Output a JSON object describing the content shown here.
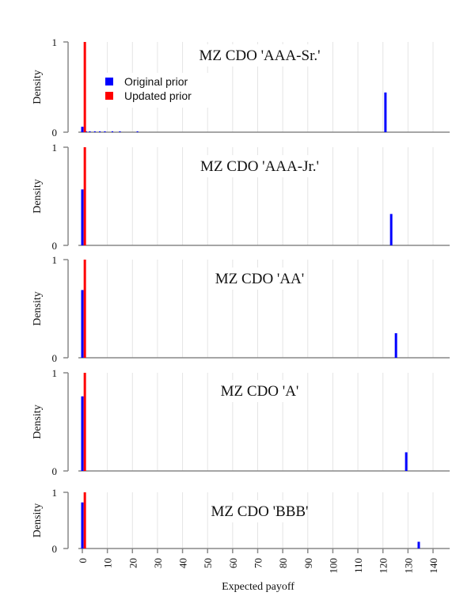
{
  "chart_data": {
    "type": "bar",
    "xlabel": "Expected payoff",
    "ylabel": "Density",
    "xlim": [
      0,
      140
    ],
    "ylim": [
      0,
      1
    ],
    "x_ticks": [
      "0",
      "10",
      "20",
      "30",
      "40",
      "50",
      "60",
      "70",
      "80",
      "90",
      "100",
      "110",
      "120",
      "130",
      "140"
    ],
    "y_ticks": [
      "0",
      "1"
    ],
    "grid": "vertical",
    "legend": {
      "placement": "top-left (first panel)",
      "entries": [
        {
          "name": "Original prior",
          "color": "#0000ff"
        },
        {
          "name": "Updated prior",
          "color": "#ff0000"
        }
      ]
    },
    "panels": [
      {
        "title": "MZ CDO 'AAA-Sr.'",
        "series": [
          {
            "name": "Original prior",
            "points": [
              {
                "x": 0,
                "y": 0.06
              },
              {
                "x": 1.5,
                "y": 0.01
              },
              {
                "x": 3,
                "y": 0.01
              },
              {
                "x": 5,
                "y": 0.01
              },
              {
                "x": 7,
                "y": 0.01
              },
              {
                "x": 9,
                "y": 0.01
              },
              {
                "x": 12,
                "y": 0.01
              },
              {
                "x": 15,
                "y": 0.01
              },
              {
                "x": 22,
                "y": 0.01
              },
              {
                "x": 121,
                "y": 0.44
              }
            ]
          },
          {
            "name": "Updated prior",
            "points": [
              {
                "x": 1,
                "y": 1.0
              }
            ]
          }
        ]
      },
      {
        "title": "MZ CDO 'AAA-Jr.'",
        "series": [
          {
            "name": "Original prior",
            "points": [
              {
                "x": 0,
                "y": 0.57
              },
              {
                "x": 123.3,
                "y": 0.32
              }
            ]
          },
          {
            "name": "Updated prior",
            "points": [
              {
                "x": 1,
                "y": 1.0
              }
            ]
          }
        ]
      },
      {
        "title": "MZ CDO 'AA'",
        "series": [
          {
            "name": "Original prior",
            "points": [
              {
                "x": 0,
                "y": 0.69
              },
              {
                "x": 125.2,
                "y": 0.25
              }
            ]
          },
          {
            "name": "Updated prior",
            "points": [
              {
                "x": 1,
                "y": 1.0
              }
            ]
          }
        ]
      },
      {
        "title": "MZ CDO 'A'",
        "series": [
          {
            "name": "Original prior",
            "points": [
              {
                "x": 0,
                "y": 0.76
              },
              {
                "x": 129.3,
                "y": 0.19
              }
            ]
          },
          {
            "name": "Updated prior",
            "points": [
              {
                "x": 1,
                "y": 1.0
              }
            ]
          }
        ]
      },
      {
        "title": "MZ CDO 'BBB'",
        "series": [
          {
            "name": "Original prior",
            "points": [
              {
                "x": 0,
                "y": 0.82
              },
              {
                "x": 134.3,
                "y": 0.12
              }
            ]
          },
          {
            "name": "Updated prior",
            "points": [
              {
                "x": 1,
                "y": 1.0
              }
            ]
          }
        ]
      }
    ]
  }
}
